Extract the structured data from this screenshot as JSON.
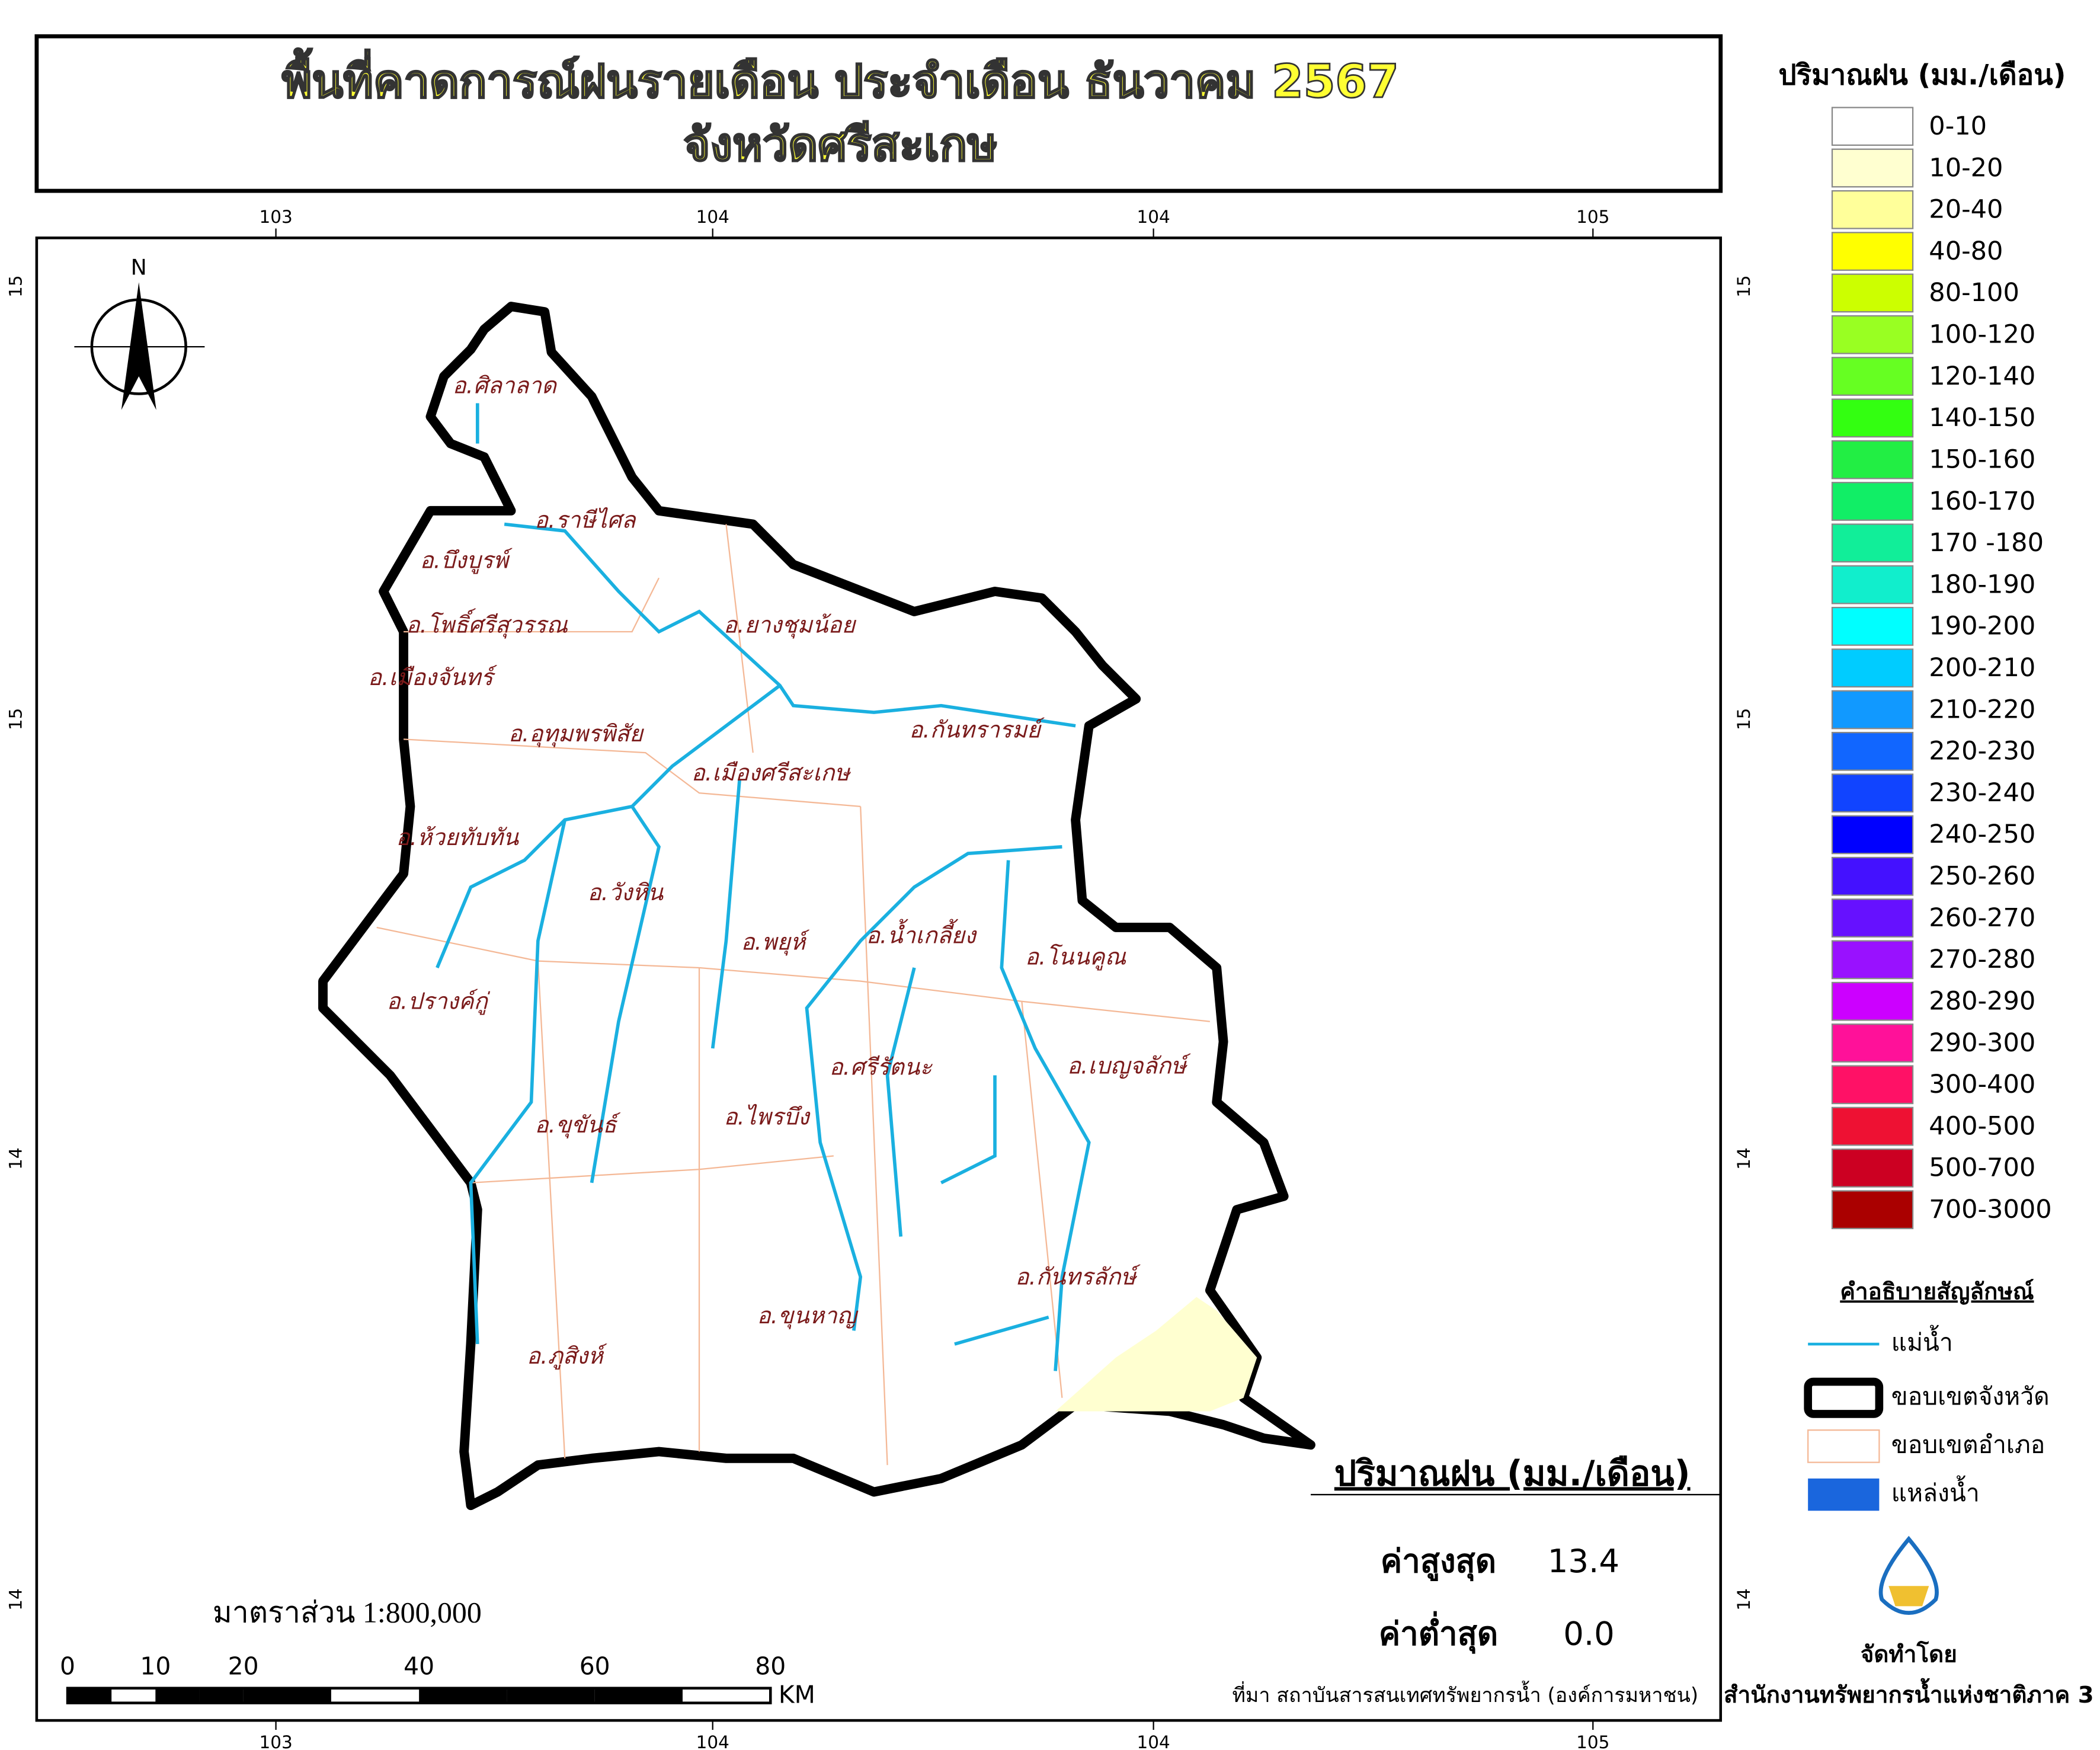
{
  "header": {
    "title_line1": "พื้นที่คาดการณ์ฝนรายเดือน ประจำเดือน ธันวาคม 2567",
    "title_line2": "จังหวัดศรีสะเกษ"
  },
  "legend": {
    "title": "ปริมาณฝน (มม./เดือน)",
    "classes": [
      {
        "label": "0-10",
        "color": "#ffffff"
      },
      {
        "label": "10-20",
        "color": "#ffffd0"
      },
      {
        "label": "20-40",
        "color": "#ffff9a"
      },
      {
        "label": "40-80",
        "color": "#ffff00"
      },
      {
        "label": "80-100",
        "color": "#ccff00"
      },
      {
        "label": "100-120",
        "color": "#99ff22"
      },
      {
        "label": "120-140",
        "color": "#66ff22"
      },
      {
        "label": "140-150",
        "color": "#33ff11"
      },
      {
        "label": "150-160",
        "color": "#22ee44"
      },
      {
        "label": "160-170",
        "color": "#11ee66"
      },
      {
        "label": "170 -180",
        "color": "#11ee99"
      },
      {
        "label": "180-190",
        "color": "#11eecc"
      },
      {
        "label": "190-200",
        "color": "#00ffff"
      },
      {
        "label": "200-210",
        "color": "#00ccff"
      },
      {
        "label": "210-220",
        "color": "#1199ff"
      },
      {
        "label": "220-230",
        "color": "#1166ff"
      },
      {
        "label": "230-240",
        "color": "#1144ff"
      },
      {
        "label": "240-250",
        "color": "#0000ff"
      },
      {
        "label": "250-260",
        "color": "#4411ff"
      },
      {
        "label": "260-270",
        "color": "#6611ff"
      },
      {
        "label": "270-280",
        "color": "#9911ff"
      },
      {
        "label": "280-290",
        "color": "#cc00ff"
      },
      {
        "label": "290-300",
        "color": "#ff1199"
      },
      {
        "label": "300-400",
        "color": "#ff1166"
      },
      {
        "label": "400-500",
        "color": "#ee1133"
      },
      {
        "label": "500-700",
        "color": "#cc0022"
      },
      {
        "label": "700-3000",
        "color": "#aa0000"
      }
    ]
  },
  "symbols": {
    "title": "คำอธิบายสัญลักษณ์",
    "items": [
      "แม่น้ำ",
      "ขอบเขตจังหวัด",
      "ขอบเขตอำเภอ",
      "แหล่งน้ำ"
    ]
  },
  "districts": [
    "อ.ศิลาลาด",
    "อ.ราษีไศล",
    "อ.บึงบูรพ์",
    "อ.โพธิ์ศรีสุวรรณ",
    "อ.เมืองจันทร์",
    "อ.ยางชุมน้อย",
    "อ.อุทุมพรพิสัย",
    "อ.กันทรารมย์",
    "อ.เมืองศรีสะเกษ",
    "อ.ห้วยทับทัน",
    "อ.วังหิน",
    "อ.พยุห์",
    "อ.น้ำเกลี้ยง",
    "อ.โนนคูณ",
    "อ.ปรางค์กู่",
    "อ.ศรีรัตนะ",
    "อ.เบญจลักษ์",
    "อ.ขุขันธ์",
    "อ.ไพรบึง",
    "อ.กันทรลักษ์",
    "อ.ขุนหาญ",
    "อ.ภูสิงห์"
  ],
  "stats": {
    "title": "ปริมาณฝน (มม./เดือน)",
    "max_label": "ค่าสูงสุด",
    "max_value": "13.4",
    "min_label": "ค่าต่ำสุด",
    "min_value": "0.0"
  },
  "scale": {
    "label": "มาตราส่วน 1:800,000",
    "ticks": [
      0,
      10,
      20,
      40,
      60,
      80
    ],
    "unit": "KM"
  },
  "coords": {
    "top": [
      "103",
      "104",
      "104",
      "105"
    ],
    "bottom": [
      "103",
      "104",
      "104",
      "105"
    ],
    "left": [
      "15",
      "15",
      "14",
      "14"
    ],
    "right": [
      "15",
      "15",
      "14",
      "14"
    ]
  },
  "north": "N",
  "source": "ที่มา  สถาบันสารสนเทศทรัพยากรน้ำ (องค์การมหาชน)",
  "credit": {
    "by": "จัดทำโดย",
    "org": "สำนักงานทรัพยากรน้ำแห่งชาติภาค 3"
  }
}
